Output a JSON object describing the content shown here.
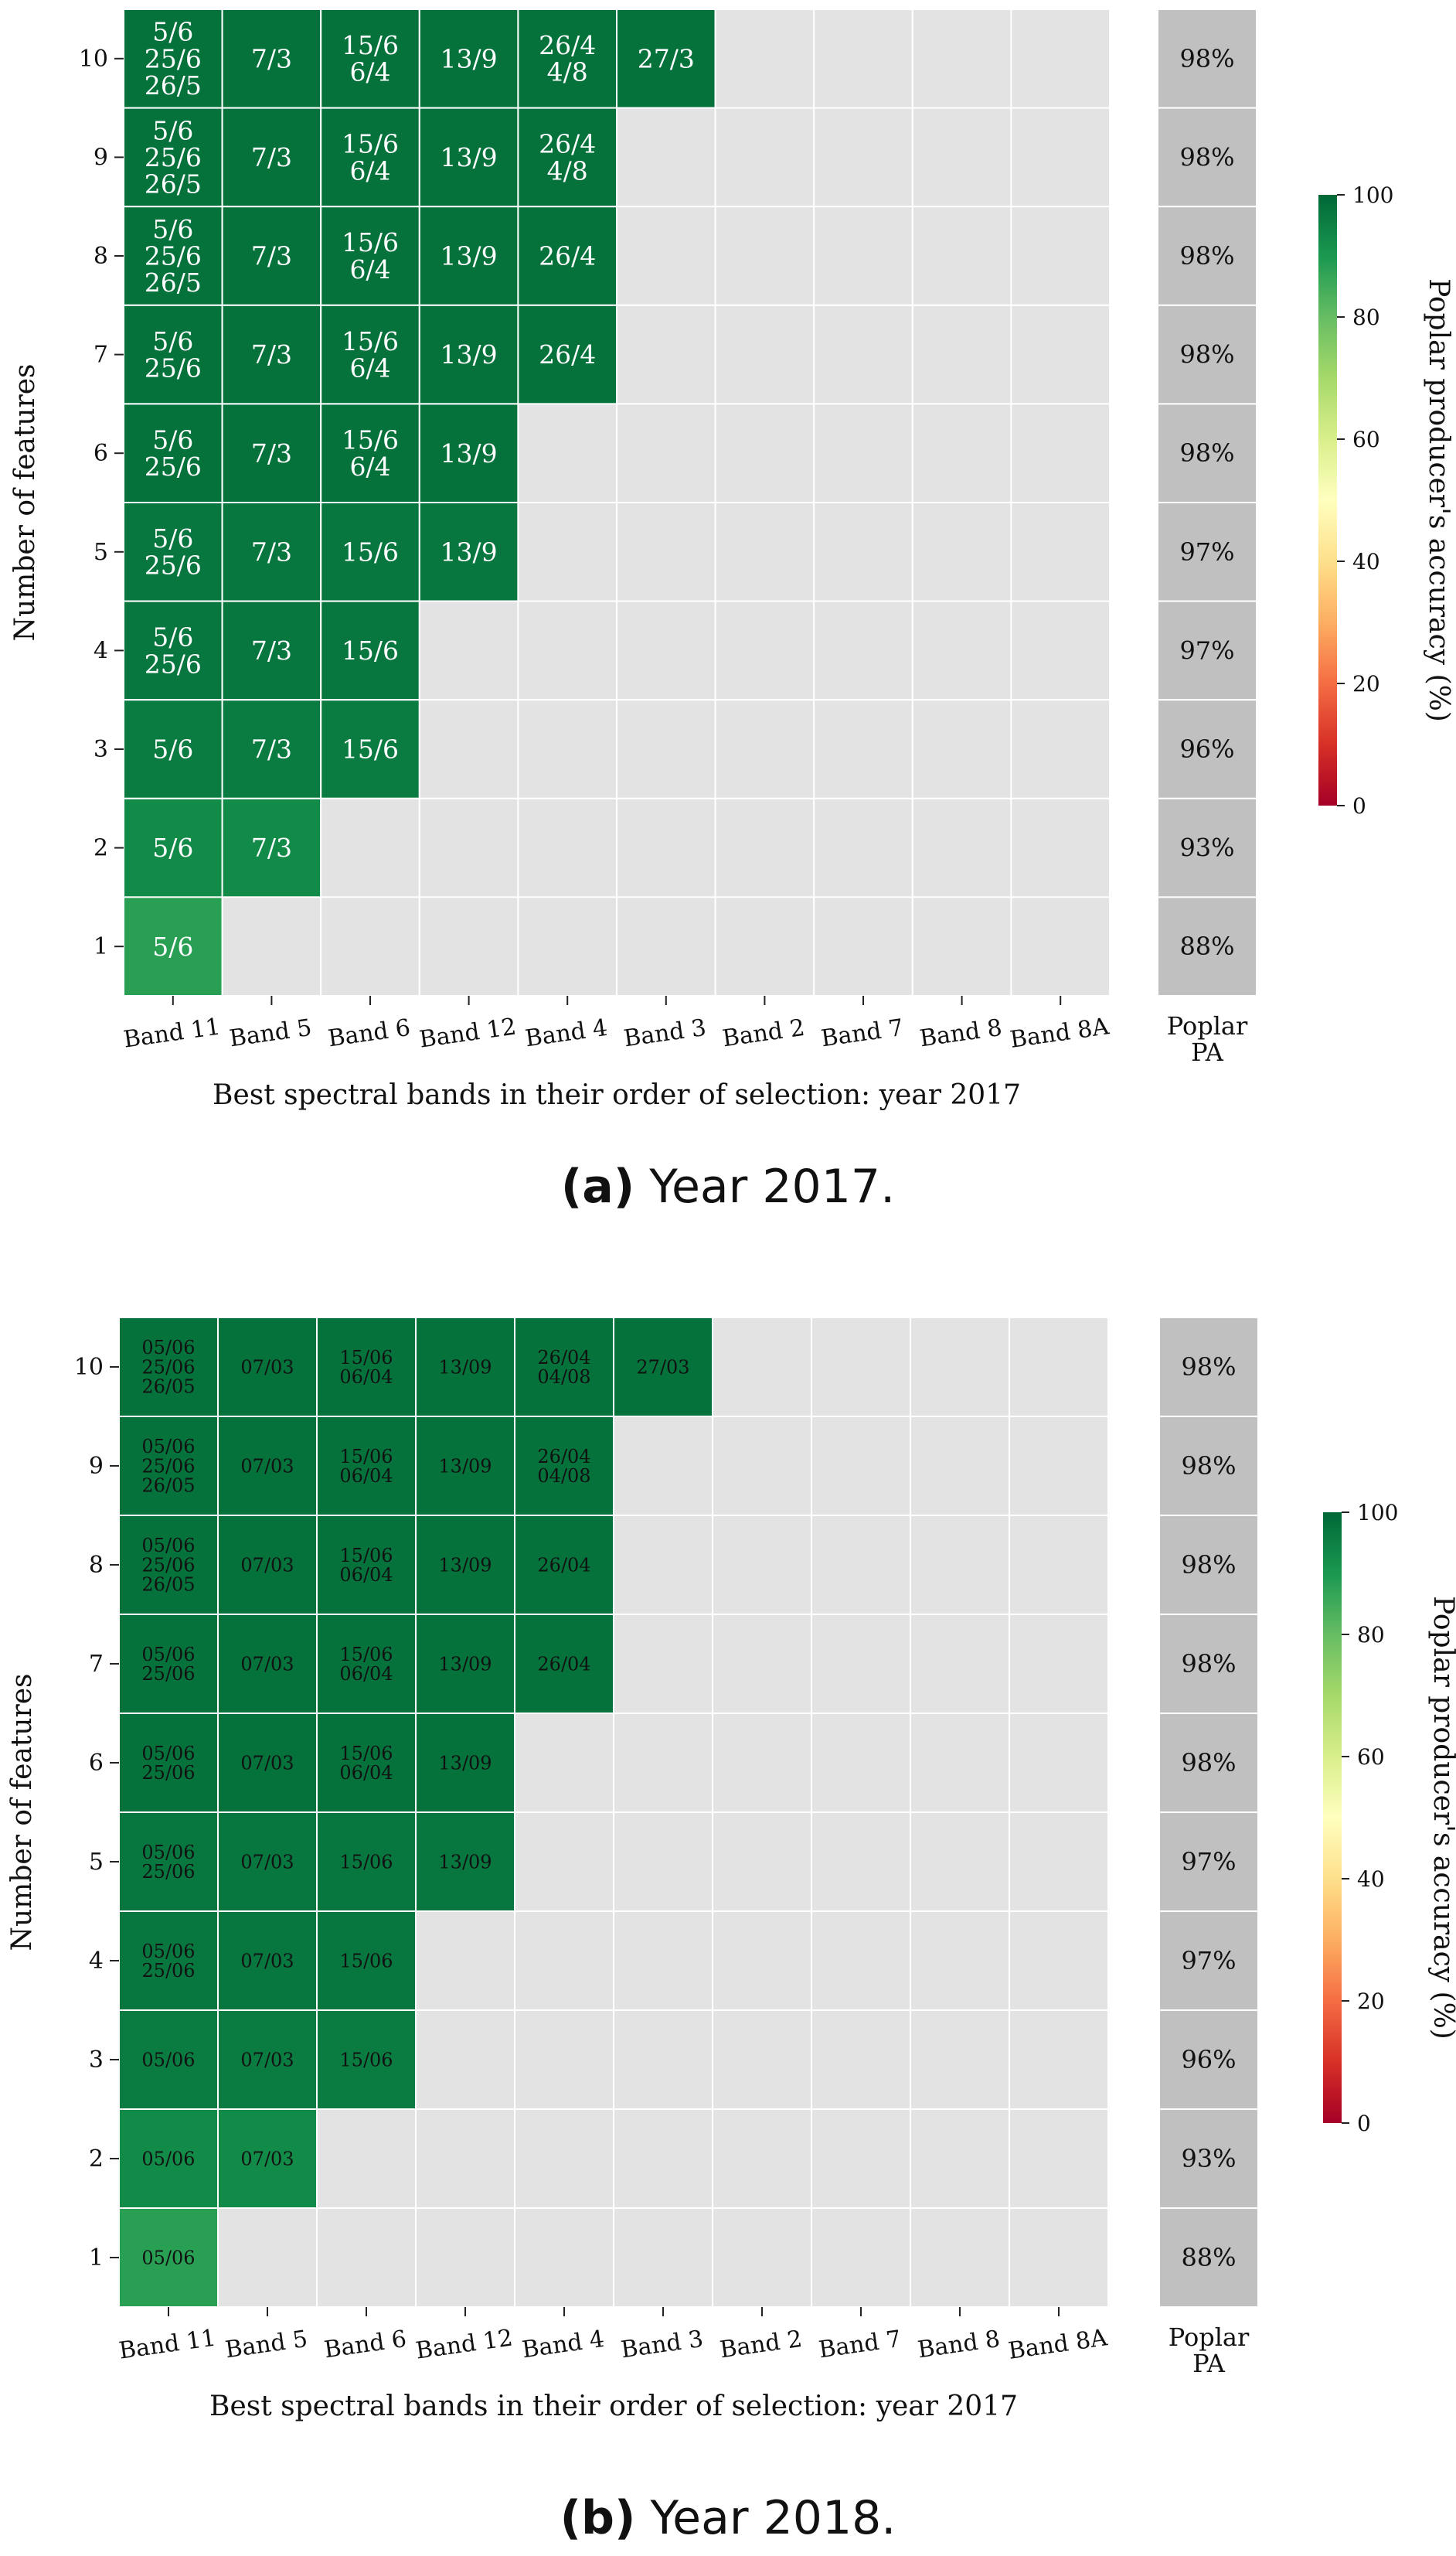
{
  "panels": [
    {
      "caption_label": "(a)",
      "caption_text": "Year 2017.",
      "chart_data": {
        "type": "heatmap",
        "xlabel": "Best spectral bands in their order of selection: year 2017",
        "ylabel": "Number of features",
        "x_categories": [
          "Band 11",
          "Band 5",
          "Band 6",
          "Band 12",
          "Band 4",
          "Band 3",
          "Band 2",
          "Band 7",
          "Band 8",
          "Band 8A"
        ],
        "y_categories": [
          "10",
          "9",
          "8",
          "7",
          "6",
          "5",
          "4",
          "3",
          "2",
          "1"
        ],
        "cell_labels": [
          [
            "5/6\n25/6\n26/5",
            "7/3",
            "15/6\n6/4",
            "13/9",
            "26/4\n4/8",
            "27/3",
            "",
            "",
            "",
            ""
          ],
          [
            "5/6\n25/6\n26/5",
            "7/3",
            "15/6\n6/4",
            "13/9",
            "26/4\n4/8",
            "",
            "",
            "",
            "",
            ""
          ],
          [
            "5/6\n25/6\n26/5",
            "7/3",
            "15/6\n6/4",
            "13/9",
            "26/4",
            "",
            "",
            "",
            "",
            ""
          ],
          [
            "5/6\n25/6",
            "7/3",
            "15/6\n6/4",
            "13/9",
            "26/4",
            "",
            "",
            "",
            "",
            ""
          ],
          [
            "5/6\n25/6",
            "7/3",
            "15/6\n6/4",
            "13/9",
            "",
            "",
            "",
            "",
            "",
            ""
          ],
          [
            "5/6\n25/6",
            "7/3",
            "15/6",
            "13/9",
            "",
            "",
            "",
            "",
            "",
            ""
          ],
          [
            "5/6\n25/6",
            "7/3",
            "15/6",
            "",
            "",
            "",
            "",
            "",
            "",
            ""
          ],
          [
            "5/6",
            "7/3",
            "15/6",
            "",
            "",
            "",
            "",
            "",
            "",
            ""
          ],
          [
            "5/6",
            "7/3",
            "",
            "",
            "",
            "",
            "",
            "",
            "",
            ""
          ],
          [
            "5/6",
            "",
            "",
            "",
            "",
            "",
            "",
            "",
            "",
            ""
          ]
        ],
        "pa_values": [
          98,
          98,
          98,
          98,
          98,
          97,
          97,
          96,
          93,
          88
        ],
        "pa_labels": [
          "98%",
          "98%",
          "98%",
          "98%",
          "98%",
          "97%",
          "97%",
          "96%",
          "93%",
          "88%"
        ],
        "pa_column_label": "Poplar\nPA",
        "colorbar": {
          "label": "Poplar producer's accuracy (%)",
          "range": [
            0,
            100
          ],
          "ticks": [
            "0",
            "20",
            "40",
            "60",
            "80",
            "100"
          ]
        },
        "cell_text_color": "#ffffff",
        "cell_text_format": "short"
      }
    },
    {
      "caption_label": "(b)",
      "caption_text": "Year 2018.",
      "chart_data": {
        "type": "heatmap",
        "xlabel": "Best spectral bands in their order of selection: year 2017",
        "ylabel": "Number of features",
        "x_categories": [
          "Band 11",
          "Band 5",
          "Band 6",
          "Band 12",
          "Band 4",
          "Band 3",
          "Band 2",
          "Band 7",
          "Band 8",
          "Band 8A"
        ],
        "y_categories": [
          "10",
          "9",
          "8",
          "7",
          "6",
          "5",
          "4",
          "3",
          "2",
          "1"
        ],
        "cell_labels": [
          [
            "05/06\n25/06\n26/05",
            "07/03",
            "15/06\n06/04",
            "13/09",
            "26/04\n04/08",
            "27/03",
            "",
            "",
            "",
            ""
          ],
          [
            "05/06\n25/06\n26/05",
            "07/03",
            "15/06\n06/04",
            "13/09",
            "26/04\n04/08",
            "",
            "",
            "",
            "",
            ""
          ],
          [
            "05/06\n25/06\n26/05",
            "07/03",
            "15/06\n06/04",
            "13/09",
            "26/04",
            "",
            "",
            "",
            "",
            ""
          ],
          [
            "05/06\n25/06",
            "07/03",
            "15/06\n06/04",
            "13/09",
            "26/04",
            "",
            "",
            "",
            "",
            ""
          ],
          [
            "05/06\n25/06",
            "07/03",
            "15/06\n06/04",
            "13/09",
            "",
            "",
            "",
            "",
            "",
            ""
          ],
          [
            "05/06\n25/06",
            "07/03",
            "15/06",
            "13/09",
            "",
            "",
            "",
            "",
            "",
            ""
          ],
          [
            "05/06\n25/06",
            "07/03",
            "15/06",
            "",
            "",
            "",
            "",
            "",
            "",
            ""
          ],
          [
            "05/06",
            "07/03",
            "15/06",
            "",
            "",
            "",
            "",
            "",
            "",
            ""
          ],
          [
            "05/06",
            "07/03",
            "",
            "",
            "",
            "",
            "",
            "",
            "",
            ""
          ],
          [
            "05/06",
            "",
            "",
            "",
            "",
            "",
            "",
            "",
            "",
            ""
          ]
        ],
        "pa_values": [
          98,
          98,
          98,
          98,
          98,
          97,
          97,
          96,
          93,
          88
        ],
        "pa_labels": [
          "98%",
          "98%",
          "98%",
          "98%",
          "98%",
          "97%",
          "97%",
          "96%",
          "93%",
          "88%"
        ],
        "pa_column_label": "Poplar\nPA",
        "colorbar": {
          "label": "Poplar producer's accuracy (%)",
          "range": [
            0,
            100
          ],
          "ticks": [
            "0",
            "20",
            "40",
            "60",
            "80",
            "100"
          ]
        },
        "cell_text_color": "#111111",
        "cell_text_format": "padded"
      }
    }
  ],
  "colors": {
    "empty_cell": "#e3e3e3",
    "pa_column": "#c0c0c0",
    "grid_line": "#ffffff",
    "colormap": [
      "#a50026",
      "#d73027",
      "#f46d43",
      "#fdae61",
      "#fee08b",
      "#ffffbf",
      "#d9ef8b",
      "#a6d96a",
      "#66bd63",
      "#1a9850",
      "#006837"
    ]
  }
}
